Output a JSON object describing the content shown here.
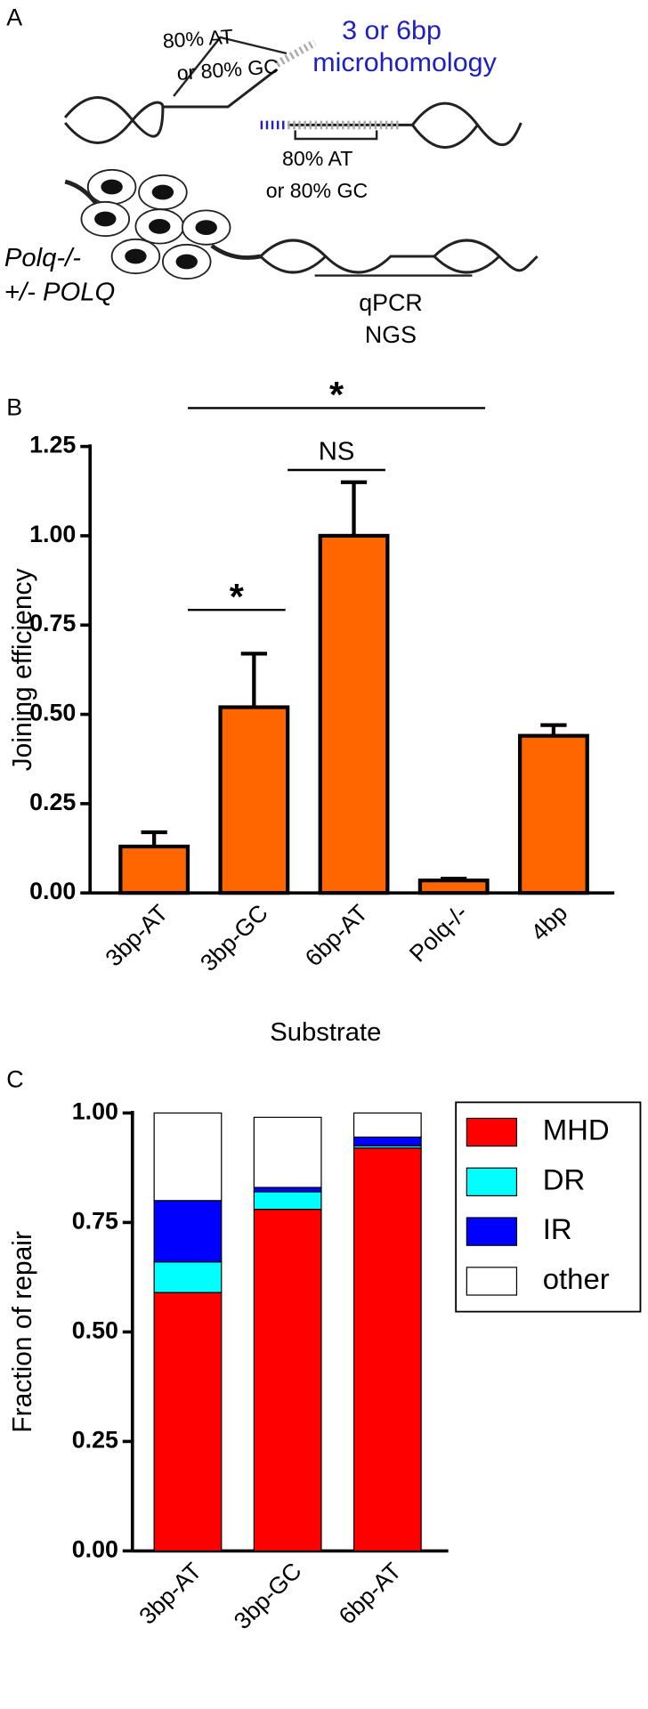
{
  "panel_labels": [
    "A",
    "B",
    "C"
  ],
  "diagram": {
    "top_label_1": "80% AT",
    "top_label_2": "or 80% GC",
    "mh_label_1": "3 or 6bp",
    "mh_label_2": "microhomology",
    "bottom_label_1": "80% AT",
    "bottom_label_2": "or 80% GC",
    "cell_label_1": "Polq-/-",
    "cell_label_2": "+/- POLQ",
    "assay_1": "qPCR",
    "assay_2": "NGS"
  },
  "chart_data": [
    {
      "type": "bar",
      "ylabel": "Joining efficiency",
      "xlabel": "Substrate",
      "categories": [
        "3bp-AT",
        "3bp-GC",
        "6bp-AT",
        "Polq-/-",
        "4bp"
      ],
      "values": [
        0.13,
        0.52,
        1.0,
        0.035,
        0.44
      ],
      "errors": [
        0.04,
        0.15,
        0.15,
        0.005,
        0.03
      ],
      "color": "#ff6600",
      "ylim": [
        0,
        1.25
      ],
      "yticks": [
        {
          "value": 0,
          "label": "0.00"
        },
        {
          "value": 0.25,
          "label": "0.25"
        },
        {
          "value": 0.5,
          "label": "0.50"
        },
        {
          "value": 0.75,
          "label": "0.75"
        },
        {
          "value": 1,
          "label": "1.00"
        },
        {
          "value": 1.25,
          "label": "1.25"
        }
      ],
      "annotations": [
        {
          "text": "*",
          "between": [
            "3bp-AT",
            "3bp-GC"
          ]
        },
        {
          "text": "NS",
          "between": [
            "3bp-GC",
            "6bp-AT"
          ]
        },
        {
          "text": "*",
          "between": [
            "3bp-AT",
            "Polq-/-"
          ]
        }
      ]
    },
    {
      "type": "stacked-bar",
      "ylabel": "Fraction of repair",
      "categories": [
        "3bp-AT",
        "3bp-GC",
        "6bp-AT"
      ],
      "series": [
        {
          "name": "MHD",
          "color": "#ff0000",
          "values": [
            0.59,
            0.78,
            0.92
          ]
        },
        {
          "name": "DR",
          "color": "#00ffff",
          "values": [
            0.07,
            0.04,
            0.005
          ]
        },
        {
          "name": "IR",
          "color": "#0000ff",
          "values": [
            0.14,
            0.01,
            0.02
          ]
        },
        {
          "name": "other",
          "color": "#ffffff",
          "values": [
            0.2,
            0.16,
            0.055
          ]
        }
      ],
      "ylim": [
        0,
        1
      ],
      "yticks": [
        {
          "value": 0,
          "label": "0.00"
        },
        {
          "value": 0.25,
          "label": "0.25"
        },
        {
          "value": 0.5,
          "label": "0.50"
        },
        {
          "value": 0.75,
          "label": "0.75"
        },
        {
          "value": 1,
          "label": "1.00"
        }
      ],
      "legend": "upper right"
    }
  ]
}
